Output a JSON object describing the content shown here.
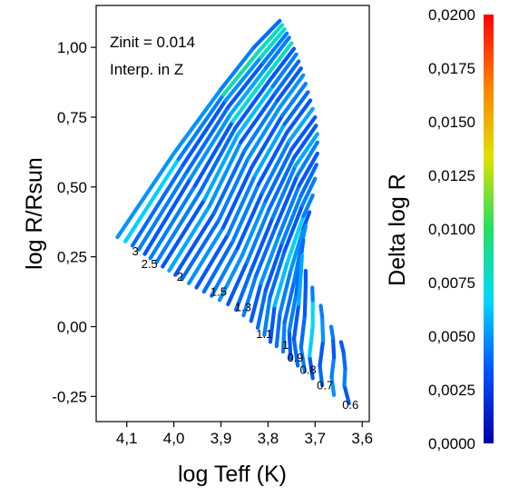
{
  "chart_data": {
    "type": "scatter",
    "xlabel": "log Teff (K)",
    "ylabel": "log R/Rsun",
    "x_reversed": true,
    "xlim": [
      4.165,
      3.585
    ],
    "ylim": [
      -0.34,
      1.15
    ],
    "x_ticks": [
      {
        "value": 4.1,
        "label": "4,1"
      },
      {
        "value": 4.0,
        "label": "4,0"
      },
      {
        "value": 3.9,
        "label": "3,9"
      },
      {
        "value": 3.8,
        "label": "3,8"
      },
      {
        "value": 3.7,
        "label": "3,7"
      },
      {
        "value": 3.6,
        "label": "3,6"
      }
    ],
    "y_ticks": [
      {
        "value": 1.0,
        "label": "1,00"
      },
      {
        "value": 0.75,
        "label": "0,75"
      },
      {
        "value": 0.5,
        "label": "0,50"
      },
      {
        "value": 0.25,
        "label": "0,25"
      },
      {
        "value": 0.0,
        "label": "0,00"
      },
      {
        "value": -0.25,
        "label": "-0,25"
      }
    ],
    "annotations": [
      "Zinit = 0.014",
      "Interp. in Z"
    ],
    "colorbar": {
      "label": "Delta log R",
      "range": [
        0.0,
        0.02
      ],
      "ticks": [
        {
          "value": 0.02,
          "label": "0,0200"
        },
        {
          "value": 0.0175,
          "label": "0,0175"
        },
        {
          "value": 0.015,
          "label": "0,0150"
        },
        {
          "value": 0.0125,
          "label": "0,0125"
        },
        {
          "value": 0.01,
          "label": "0,0100"
        },
        {
          "value": 0.0075,
          "label": "0,0075"
        },
        {
          "value": 0.005,
          "label": "0,0050"
        },
        {
          "value": 0.0025,
          "label": "0,0025"
        },
        {
          "value": 0.0,
          "label": "0,0000"
        }
      ],
      "colors": [
        "#0000a8",
        "#0050ff",
        "#00d8ff",
        "#20e060",
        "#e0e000",
        "#ff8000",
        "#ff0000"
      ]
    },
    "mass_labels": [
      {
        "label": "3",
        "x": 4.082,
        "y": 0.255
      },
      {
        "label": "2.5",
        "x": 4.052,
        "y": 0.21
      },
      {
        "label": "2",
        "x": 3.987,
        "y": 0.165
      },
      {
        "label": "1.5",
        "x": 3.905,
        "y": 0.11
      },
      {
        "label": "1.3",
        "x": 3.853,
        "y": 0.055
      },
      {
        "label": "1.1",
        "x": 3.808,
        "y": -0.04
      },
      {
        "label": "1",
        "x": 3.763,
        "y": -0.08
      },
      {
        "label": "0.9",
        "x": 3.742,
        "y": -0.125
      },
      {
        "label": "0.8",
        "x": 3.715,
        "y": -0.17
      },
      {
        "label": "0.7",
        "x": 3.679,
        "y": -0.225
      },
      {
        "label": "0.6",
        "x": 3.625,
        "y": -0.295
      }
    ],
    "tracks": [
      {
        "points": [
          [
            4.12,
            0.32
          ],
          [
            4.0,
            0.62
          ],
          [
            3.9,
            0.85
          ],
          [
            3.83,
            1.0
          ],
          [
            3.775,
            1.095
          ]
        ],
        "delta": [
          0.004,
          0.006,
          0.004,
          0.005,
          0.003
        ]
      },
      {
        "points": [
          [
            4.103,
            0.305
          ],
          [
            3.99,
            0.6
          ],
          [
            3.895,
            0.83
          ],
          [
            3.82,
            0.985
          ],
          [
            3.77,
            1.08
          ]
        ],
        "delta": [
          0.009,
          0.004,
          0.005,
          0.012,
          0.004
        ]
      },
      {
        "points": [
          [
            4.088,
            0.29
          ],
          [
            3.98,
            0.58
          ],
          [
            3.89,
            0.81
          ],
          [
            3.815,
            0.965
          ],
          [
            3.765,
            1.065
          ]
        ],
        "delta": [
          0.005,
          0.003,
          0.004,
          0.006,
          0.01
        ]
      },
      {
        "points": [
          [
            4.075,
            0.275
          ],
          [
            3.972,
            0.555
          ],
          [
            3.885,
            0.785
          ],
          [
            3.81,
            0.945
          ],
          [
            3.76,
            1.05
          ]
        ],
        "delta": [
          0.004,
          0.005,
          0.003,
          0.004,
          0.005
        ]
      },
      {
        "points": [
          [
            4.062,
            0.26
          ],
          [
            3.965,
            0.53
          ],
          [
            3.88,
            0.76
          ],
          [
            3.805,
            0.925
          ],
          [
            3.755,
            1.035
          ]
        ],
        "delta": [
          0.003,
          0.004,
          0.006,
          0.005,
          0.004
        ]
      },
      {
        "points": [
          [
            4.05,
            0.245
          ],
          [
            3.955,
            0.505
          ],
          [
            3.875,
            0.735
          ],
          [
            3.8,
            0.905
          ],
          [
            3.75,
            1.015
          ]
        ],
        "delta": [
          0.006,
          0.003,
          0.004,
          0.011,
          0.005
        ]
      },
      {
        "points": [
          [
            4.037,
            0.23
          ],
          [
            3.945,
            0.48
          ],
          [
            3.87,
            0.71
          ],
          [
            3.795,
            0.885
          ],
          [
            3.745,
            0.995
          ]
        ],
        "delta": [
          0.004,
          0.005,
          0.003,
          0.004,
          0.003
        ]
      },
      {
        "points": [
          [
            4.024,
            0.215
          ],
          [
            3.935,
            0.455
          ],
          [
            3.865,
            0.685
          ],
          [
            3.79,
            0.86
          ],
          [
            3.74,
            0.975
          ]
        ],
        "delta": [
          0.003,
          0.004,
          0.007,
          0.005,
          0.004
        ]
      },
      {
        "points": [
          [
            4.01,
            0.2
          ],
          [
            3.925,
            0.43
          ],
          [
            3.858,
            0.66
          ],
          [
            3.785,
            0.835
          ],
          [
            3.735,
            0.95
          ]
        ],
        "delta": [
          0.005,
          0.006,
          0.004,
          0.003,
          0.005
        ]
      },
      {
        "points": [
          [
            3.997,
            0.185
          ],
          [
            3.915,
            0.405
          ],
          [
            3.85,
            0.63
          ],
          [
            3.78,
            0.81
          ],
          [
            3.73,
            0.925
          ]
        ],
        "delta": [
          0.004,
          0.003,
          0.005,
          0.004,
          0.003
        ]
      },
      {
        "points": [
          [
            3.983,
            0.17
          ],
          [
            3.905,
            0.38
          ],
          [
            3.843,
            0.6
          ],
          [
            3.775,
            0.785
          ],
          [
            3.725,
            0.9
          ]
        ],
        "delta": [
          0.003,
          0.005,
          0.004,
          0.006,
          0.004
        ]
      },
      {
        "points": [
          [
            3.968,
            0.155
          ],
          [
            3.895,
            0.355
          ],
          [
            3.835,
            0.57
          ],
          [
            3.77,
            0.755
          ],
          [
            3.72,
            0.87
          ]
        ],
        "delta": [
          0.006,
          0.004,
          0.003,
          0.004,
          0.005
        ]
      },
      {
        "points": [
          [
            3.952,
            0.14
          ],
          [
            3.885,
            0.33
          ],
          [
            3.828,
            0.54
          ],
          [
            3.765,
            0.725
          ],
          [
            3.715,
            0.84
          ]
        ],
        "delta": [
          0.004,
          0.003,
          0.006,
          0.005,
          0.003
        ]
      },
      {
        "points": [
          [
            3.936,
            0.125
          ],
          [
            3.875,
            0.305
          ],
          [
            3.82,
            0.51
          ],
          [
            3.76,
            0.695
          ],
          [
            3.71,
            0.81
          ]
        ],
        "delta": [
          0.003,
          0.005,
          0.004,
          0.003,
          0.004
        ]
      },
      {
        "points": [
          [
            3.92,
            0.11
          ],
          [
            3.865,
            0.28
          ],
          [
            3.812,
            0.48
          ],
          [
            3.755,
            0.665
          ],
          [
            3.705,
            0.78
          ]
        ],
        "delta": [
          0.005,
          0.004,
          0.003,
          0.006,
          0.005
        ]
      },
      {
        "points": [
          [
            3.903,
            0.095
          ],
          [
            3.855,
            0.255
          ],
          [
            3.805,
            0.45
          ],
          [
            3.75,
            0.635
          ],
          [
            3.7,
            0.75
          ]
        ],
        "delta": [
          0.004,
          0.006,
          0.004,
          0.004,
          0.003
        ]
      },
      {
        "points": [
          [
            3.885,
            0.08
          ],
          [
            3.845,
            0.23
          ],
          [
            3.798,
            0.42
          ],
          [
            3.745,
            0.605
          ],
          [
            3.698,
            0.72
          ]
        ],
        "delta": [
          0.003,
          0.004,
          0.005,
          0.003,
          0.004
        ]
      },
      {
        "points": [
          [
            3.868,
            0.06
          ],
          [
            3.835,
            0.205
          ],
          [
            3.79,
            0.39
          ],
          [
            3.742,
            0.575
          ],
          [
            3.695,
            0.69
          ]
        ],
        "delta": [
          0.005,
          0.003,
          0.004,
          0.005,
          0.006
        ]
      },
      {
        "points": [
          [
            3.852,
            0.04
          ],
          [
            3.826,
            0.18
          ],
          [
            3.783,
            0.36
          ],
          [
            3.738,
            0.54
          ],
          [
            3.695,
            0.66
          ]
        ],
        "delta": [
          0.004,
          0.005,
          0.003,
          0.004,
          0.005
        ]
      },
      {
        "points": [
          [
            3.836,
            0.02
          ],
          [
            3.815,
            0.155
          ],
          [
            3.776,
            0.33
          ],
          [
            3.734,
            0.505
          ],
          [
            3.695,
            0.62
          ]
        ],
        "delta": [
          0.003,
          0.004,
          0.006,
          0.003,
          0.004
        ]
      },
      {
        "points": [
          [
            3.822,
            -0.005
          ],
          [
            3.805,
            0.13
          ],
          [
            3.77,
            0.3
          ],
          [
            3.73,
            0.47
          ],
          [
            3.697,
            0.58
          ]
        ],
        "delta": [
          0.005,
          0.003,
          0.004,
          0.005,
          0.003
        ]
      },
      {
        "points": [
          [
            3.808,
            -0.03
          ],
          [
            3.796,
            0.105
          ],
          [
            3.765,
            0.27
          ],
          [
            3.727,
            0.435
          ],
          [
            3.7,
            0.53
          ]
        ],
        "delta": [
          0.004,
          0.005,
          0.003,
          0.004,
          0.005
        ]
      },
      {
        "points": [
          [
            3.795,
            -0.055
          ],
          [
            3.786,
            0.075
          ],
          [
            3.758,
            0.235
          ],
          [
            3.725,
            0.395
          ],
          [
            3.705,
            0.47
          ]
        ],
        "delta": [
          0.003,
          0.004,
          0.008,
          0.005,
          0.004
        ]
      },
      {
        "points": [
          [
            3.782,
            -0.07
          ],
          [
            3.775,
            0.045
          ],
          [
            3.752,
            0.2
          ],
          [
            3.725,
            0.35
          ],
          [
            3.712,
            0.41
          ]
        ],
        "delta": [
          0.005,
          0.003,
          0.006,
          0.004,
          0.003
        ]
      },
      {
        "points": [
          [
            3.768,
            -0.09
          ],
          [
            3.765,
            0.015
          ],
          [
            3.745,
            0.16
          ],
          [
            3.728,
            0.3
          ],
          [
            3.72,
            0.36
          ]
        ],
        "delta": [
          0.004,
          0.005,
          0.003,
          0.006,
          0.004
        ]
      },
      {
        "points": [
          [
            3.752,
            -0.115
          ],
          [
            3.755,
            -0.015
          ],
          [
            3.74,
            0.12
          ],
          [
            3.73,
            0.25
          ],
          [
            3.725,
            0.31
          ]
        ],
        "delta": [
          0.003,
          0.004,
          0.005,
          0.003,
          0.005
        ]
      },
      {
        "points": [
          [
            3.737,
            -0.14
          ],
          [
            3.745,
            -0.045
          ],
          [
            3.735,
            0.08
          ],
          [
            3.73,
            0.2
          ],
          [
            3.728,
            0.255
          ]
        ],
        "delta": [
          0.005,
          0.003,
          0.004,
          0.007,
          0.004
        ]
      },
      {
        "points": [
          [
            3.722,
            -0.16
          ],
          [
            3.73,
            -0.075
          ],
          [
            3.722,
            0.04
          ],
          [
            3.72,
            0.15
          ],
          [
            3.72,
            0.2
          ]
        ],
        "delta": [
          0.004,
          0.005,
          0.003,
          0.004,
          0.003
        ]
      },
      {
        "points": [
          [
            3.705,
            -0.185
          ],
          [
            3.712,
            -0.105
          ],
          [
            3.705,
            0.0
          ],
          [
            3.705,
            0.095
          ],
          [
            3.706,
            0.14
          ]
        ],
        "delta": [
          0.003,
          0.004,
          0.009,
          0.005,
          0.004
        ]
      },
      {
        "points": [
          [
            3.685,
            -0.21
          ],
          [
            3.69,
            -0.14
          ],
          [
            3.683,
            -0.05
          ],
          [
            3.685,
            0.035
          ],
          [
            3.688,
            0.075
          ]
        ],
        "delta": [
          0.005,
          0.003,
          0.004,
          0.006,
          0.003
        ]
      },
      {
        "points": [
          [
            3.66,
            -0.245
          ],
          [
            3.665,
            -0.18
          ],
          [
            3.66,
            -0.11
          ],
          [
            3.662,
            -0.04
          ],
          [
            3.666,
            0.0
          ]
        ],
        "delta": [
          0.004,
          0.006,
          0.003,
          0.004,
          0.005
        ]
      },
      {
        "points": [
          [
            3.628,
            -0.275
          ],
          [
            3.638,
            -0.21
          ],
          [
            3.636,
            -0.15
          ],
          [
            3.64,
            -0.09
          ],
          [
            3.645,
            -0.055
          ]
        ],
        "delta": [
          0.003,
          0.004,
          0.005,
          0.003,
          0.004
        ]
      }
    ]
  }
}
